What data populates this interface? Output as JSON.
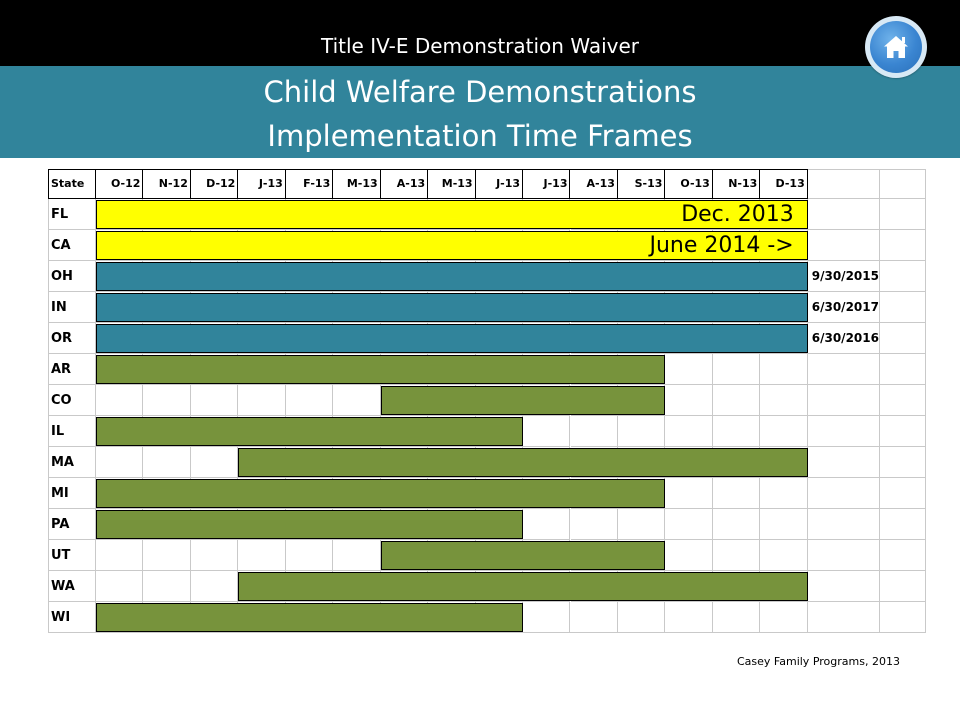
{
  "header": {
    "title": "Title IV-E Demonstration Waiver",
    "home_icon": "home-icon"
  },
  "banner": {
    "line1": "Child Welfare Demonstrations",
    "line2": "Implementation Time Frames"
  },
  "colors": {
    "yellow": "#ffff00",
    "teal": "#31849b",
    "green": "#77933c",
    "banner": "#31849b"
  },
  "chart_data": {
    "type": "table",
    "columns": [
      "State",
      "O-12",
      "N-12",
      "D-12",
      "J-13",
      "F-13",
      "M-13",
      "A-13",
      "M-13",
      "J-13",
      "J-13",
      "A-13",
      "S-13",
      "O-13",
      "N-13",
      "D-13"
    ],
    "rows": [
      {
        "state": "FL",
        "start": 0,
        "end": 15,
        "color": "yellow",
        "label": "Dec. 2013",
        "end_text": ""
      },
      {
        "state": "CA",
        "start": 0,
        "end": 15,
        "color": "yellow",
        "label": "June 2014 ->",
        "end_text": ""
      },
      {
        "state": "OH",
        "start": 0,
        "end": 15,
        "color": "teal",
        "label": "",
        "end_text": "9/30/2015"
      },
      {
        "state": "IN",
        "start": 0,
        "end": 15,
        "color": "teal",
        "label": "",
        "end_text": "6/30/2017"
      },
      {
        "state": "OR",
        "start": 0,
        "end": 15,
        "color": "teal",
        "label": "",
        "end_text": "6/30/2016"
      },
      {
        "state": "AR",
        "start": 0,
        "end": 12,
        "color": "green",
        "label": "",
        "end_text": ""
      },
      {
        "state": "CO",
        "start": 6,
        "end": 12,
        "color": "green",
        "label": "",
        "end_text": ""
      },
      {
        "state": "IL",
        "start": 0,
        "end": 9,
        "color": "green",
        "label": "",
        "end_text": ""
      },
      {
        "state": "MA",
        "start": 3,
        "end": 15,
        "color": "green",
        "label": "",
        "end_text": ""
      },
      {
        "state": "MI",
        "start": 0,
        "end": 12,
        "color": "green",
        "label": "",
        "end_text": ""
      },
      {
        "state": "PA",
        "start": 0,
        "end": 9,
        "color": "green",
        "label": "",
        "end_text": ""
      },
      {
        "state": "UT",
        "start": 6,
        "end": 12,
        "color": "green",
        "label": "",
        "end_text": ""
      },
      {
        "state": "WA",
        "start": 3,
        "end": 15,
        "color": "green",
        "label": "",
        "end_text": ""
      },
      {
        "state": "WI",
        "start": 0,
        "end": 9,
        "color": "green",
        "label": "",
        "end_text": ""
      }
    ]
  },
  "footer": {
    "credit": "Casey Family Programs, 2013"
  }
}
